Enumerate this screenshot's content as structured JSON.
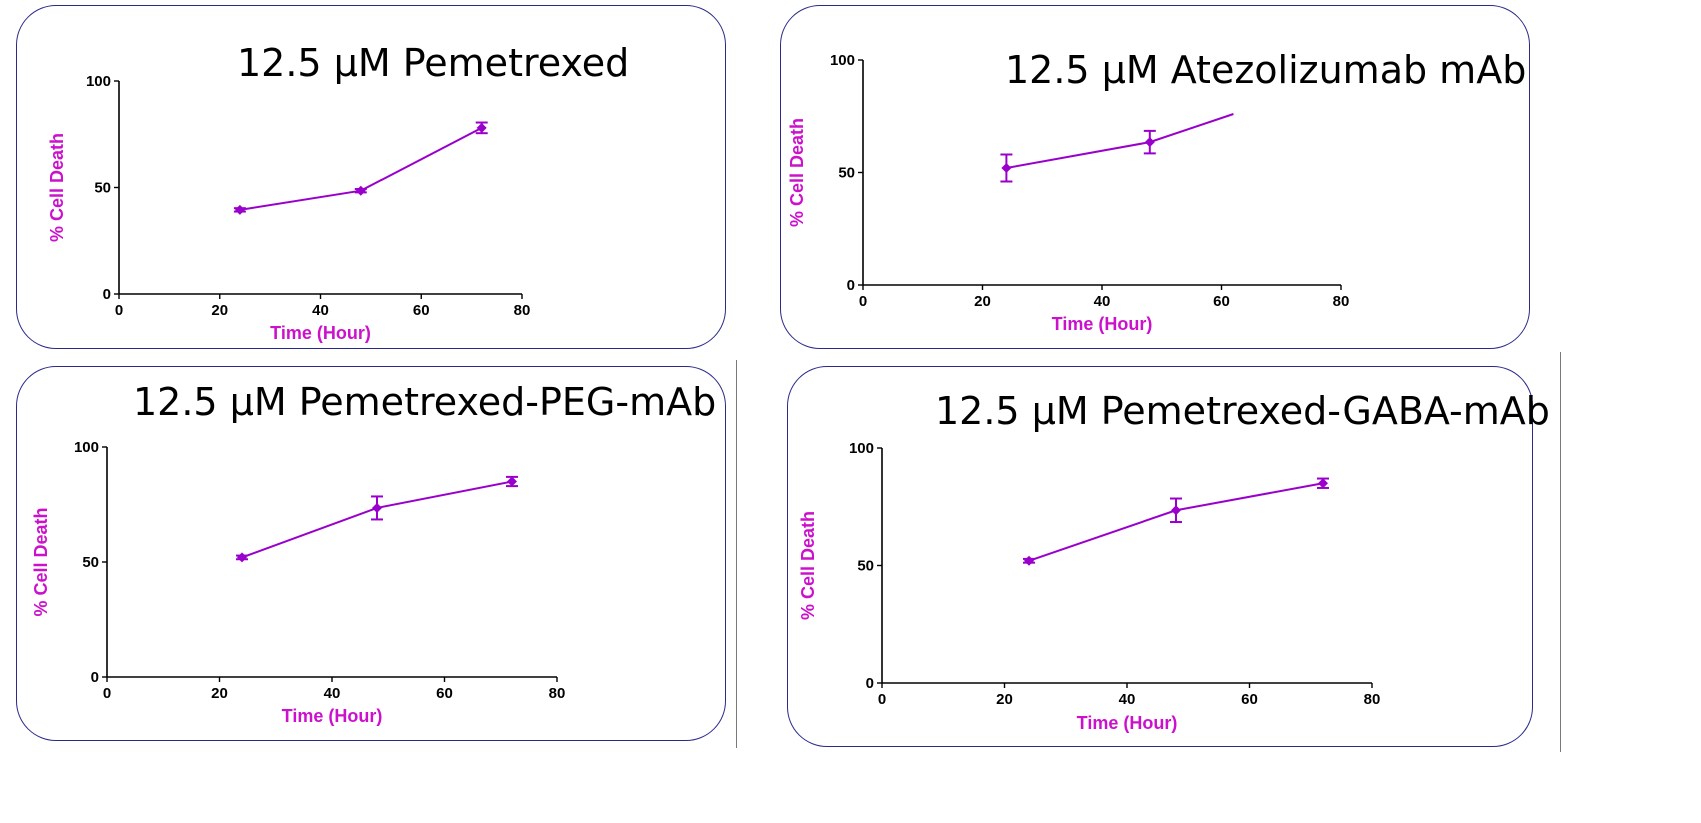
{
  "colors": {
    "series": "#9900cc",
    "axis_title": "#cc11cc",
    "border": "#2a2a8c"
  },
  "chart_data": [
    {
      "type": "line",
      "title": "12.5 µM Pemetrexed",
      "xlabel": "Time (Hour)",
      "ylabel": "% Cell Death",
      "xlim": [
        0,
        80
      ],
      "ylim": [
        0,
        100
      ],
      "xticks": [
        "0",
        "20",
        "40",
        "60",
        "80"
      ],
      "yticks": [
        "0",
        "50",
        "100"
      ],
      "x": [
        24,
        48,
        72
      ],
      "y": [
        39.5,
        48.5,
        78
      ],
      "yerr": [
        0.8,
        0.8,
        2.5
      ]
    },
    {
      "type": "line",
      "title": "12.5 µM Atezolizumab mAb",
      "xlabel": "Time (Hour)",
      "ylabel": "% Cell Death",
      "xlim": [
        0,
        80
      ],
      "ylim": [
        0,
        100
      ],
      "xticks": [
        "0",
        "20",
        "40",
        "60",
        "80"
      ],
      "yticks": [
        "0",
        "50",
        "100"
      ],
      "x": [
        24,
        48,
        62
      ],
      "y": [
        52,
        63.5,
        76
      ],
      "yerr": [
        6,
        5,
        0
      ],
      "markers": [
        true,
        true,
        false
      ]
    },
    {
      "type": "line",
      "title": "12.5 µM Pemetrexed-PEG-mAb",
      "xlabel": "Time (Hour)",
      "ylabel": "% Cell Death",
      "xlim": [
        0,
        80
      ],
      "ylim": [
        0,
        100
      ],
      "xticks": [
        "0",
        "20",
        "40",
        "60",
        "80"
      ],
      "yticks": [
        "0",
        "50",
        "100"
      ],
      "x": [
        24,
        48,
        72
      ],
      "y": [
        52,
        73.5,
        85
      ],
      "yerr": [
        0.8,
        5,
        2
      ]
    },
    {
      "type": "line",
      "title": "12.5 µM Pemetrexed-GABA-mAb",
      "xlabel": "Time (Hour)",
      "ylabel": "% Cell Death",
      "xlim": [
        0,
        80
      ],
      "ylim": [
        0,
        100
      ],
      "xticks": [
        "0",
        "20",
        "40",
        "60",
        "80"
      ],
      "yticks": [
        "0",
        "50",
        "100"
      ],
      "x": [
        24,
        48,
        72
      ],
      "y": [
        52,
        73.5,
        85
      ],
      "yerr": [
        0.8,
        5,
        2
      ]
    }
  ]
}
